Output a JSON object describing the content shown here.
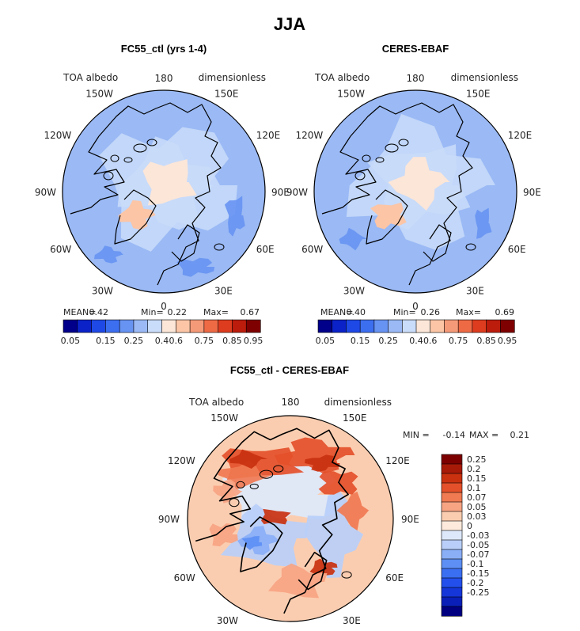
{
  "page_title": "JJA",
  "colors": {
    "abs_scale": [
      "#00008b",
      "#0a22c8",
      "#1f49e6",
      "#3c6ef0",
      "#6793f2",
      "#9ab9f5",
      "#c9dcf9",
      "#fbe6d8",
      "#fbc5a6",
      "#f59a78",
      "#ee6a45",
      "#de3c1f",
      "#bb1c0c",
      "#7f0000"
    ],
    "diff_scale": [
      "#000080",
      "#0a1fb8",
      "#1536d8",
      "#2350ec",
      "#3b6ff2",
      "#5d8ff4",
      "#8aaff7",
      "#b9cff9",
      "#dde9fb",
      "#fdeadc",
      "#fbcdb0",
      "#f7a483",
      "#f07a52",
      "#e4502a",
      "#c9310f",
      "#a81a08",
      "#7d0000"
    ]
  },
  "chart_data": [
    {
      "type": "heatmap",
      "projection": "polar-stereographic-north",
      "title": "FC55_ctl (yrs 1-4)",
      "left_label": "TOA albedo",
      "right_label": "dimensionless",
      "longitude_labels": [
        "180",
        "150E",
        "120E",
        "90E",
        "60E",
        "30E",
        "0",
        "30W",
        "60W",
        "90W",
        "120W",
        "150W"
      ],
      "stats": {
        "mean_label": "MEAN=",
        "mean": "0.42",
        "min_label": "Min=",
        "min": "0.22",
        "max_label": "Max=",
        "max": "0.67"
      },
      "colorbar_ticks": [
        "0.05",
        "0.15",
        "0.25",
        "0.4",
        "0.6",
        "0.75",
        "0.85",
        "0.95"
      ]
    },
    {
      "type": "heatmap",
      "projection": "polar-stereographic-north",
      "title": "CERES-EBAF",
      "left_label": "TOA albedo",
      "right_label": "dimensionless",
      "longitude_labels": [
        "180",
        "150E",
        "120E",
        "90E",
        "60E",
        "30E",
        "0",
        "30W",
        "60W",
        "90W",
        "120W",
        "150W"
      ],
      "stats": {
        "mean_label": "MEAN=",
        "mean": "0.40",
        "min_label": "Min=",
        "min": "0.26",
        "max_label": "Max=",
        "max": "0.69"
      },
      "colorbar_ticks": [
        "0.05",
        "0.15",
        "0.25",
        "0.4",
        "0.6",
        "0.75",
        "0.85",
        "0.95"
      ]
    },
    {
      "type": "heatmap",
      "projection": "polar-stereographic-north",
      "title": "FC55_ctl - CERES-EBAF",
      "left_label": "TOA albedo",
      "right_label": "dimensionless",
      "longitude_labels": [
        "180",
        "150E",
        "120E",
        "90E",
        "60E",
        "30E",
        "0",
        "30W",
        "60W",
        "90W",
        "120W",
        "150W"
      ],
      "stats": {
        "min_label": "MIN =",
        "min": "-0.14",
        "max_label": "MAX =",
        "max": "0.21"
      },
      "colorbar_ticks": [
        "0.25",
        "0.2",
        "0.15",
        "0.1",
        "0.07",
        "0.05",
        "0.03",
        "0",
        "-0.03",
        "-0.05",
        "-0.07",
        "-0.1",
        "-0.15",
        "-0.2",
        "-0.25"
      ]
    }
  ]
}
